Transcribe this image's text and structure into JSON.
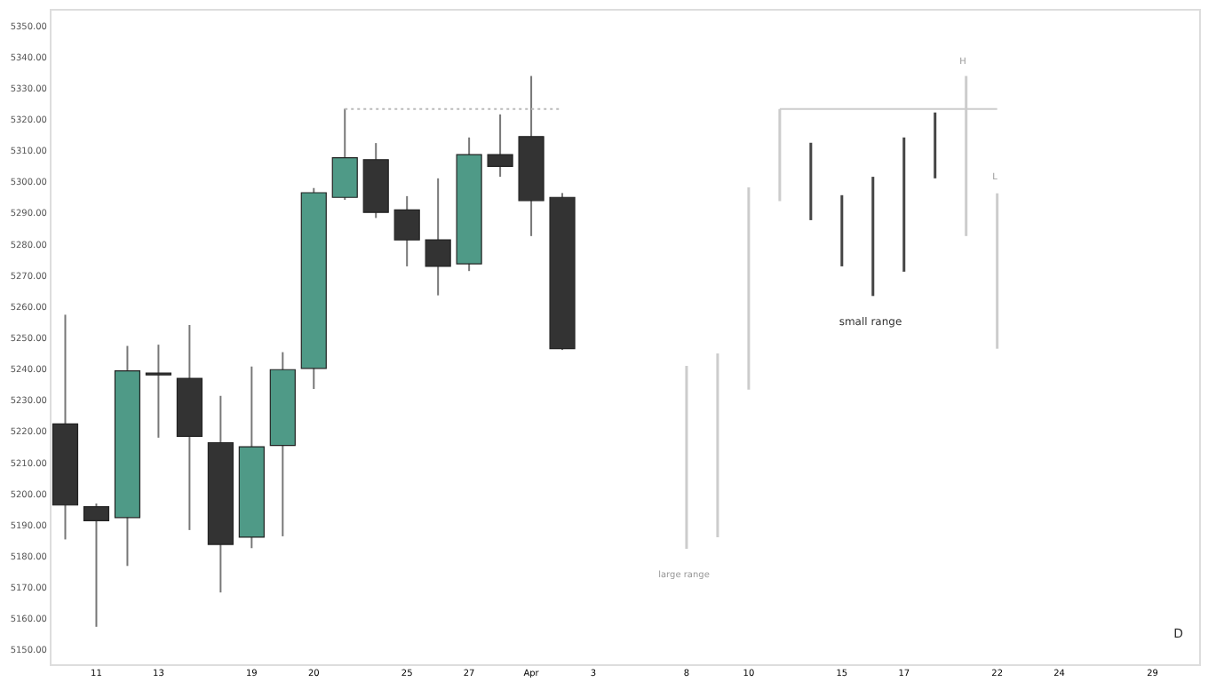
{
  "chart_data": {
    "type": "candlestick",
    "categories": [
      null,
      "11",
      null,
      "13",
      null,
      null,
      "19",
      null,
      "20",
      null,
      null,
      "25",
      null,
      "27",
      null,
      "Apr",
      null,
      "3",
      null,
      null,
      "8",
      null,
      "10",
      null,
      null,
      "15",
      null,
      "17",
      null,
      null,
      "22",
      null,
      "24",
      null,
      null,
      "29",
      null
    ],
    "ylim": [
      5145,
      5355
    ],
    "yticks": [
      {
        "value": 5150,
        "label": "5150.00"
      },
      {
        "value": 5160,
        "label": "5160.00"
      },
      {
        "value": 5170,
        "label": "5170.00"
      },
      {
        "value": 5180,
        "label": "5180.00"
      },
      {
        "value": 5190,
        "label": "5190.00"
      },
      {
        "value": 5200,
        "label": "5200.00"
      },
      {
        "value": 5210,
        "label": "5210.00"
      },
      {
        "value": 5220,
        "label": "5220.00"
      },
      {
        "value": 5230,
        "label": "5230.00"
      },
      {
        "value": 5240,
        "label": "5240.00"
      },
      {
        "value": 5250,
        "label": "5250.00"
      },
      {
        "value": 5260,
        "label": "5260.00"
      },
      {
        "value": 5270,
        "label": "5270.00"
      },
      {
        "value": 5280,
        "label": "5280.00"
      },
      {
        "value": 5290,
        "label": "5290.00"
      },
      {
        "value": 5300,
        "label": "5300.00"
      },
      {
        "value": 5310,
        "label": "5310.00"
      },
      {
        "value": 5320,
        "label": "5320.00"
      },
      {
        "value": 5330,
        "label": "5330.00"
      },
      {
        "value": 5340,
        "label": "5340.00"
      },
      {
        "value": 5350,
        "label": "5350.00"
      }
    ],
    "grid": false,
    "series": [
      {
        "ohlc": [
          [
            5222,
            5257,
            5185,
            5196
          ],
          [
            5195.5,
            5196.5,
            5157,
            5191
          ],
          [
            5192,
            5247,
            5176.5,
            5239
          ],
          [
            5238.3,
            5247.4,
            5217.6,
            5237.7
          ],
          [
            5236.6,
            5253.7,
            5188,
            5218
          ],
          [
            5216,
            5231,
            5168,
            5183.4
          ],
          [
            5185.7,
            5240.4,
            5182.2,
            5214.7
          ],
          [
            5215.1,
            5245,
            5186,
            5239.4
          ],
          [
            5239.8,
            5297.6,
            5233.2,
            5296.1
          ],
          [
            5294.6,
            5323,
            5293.8,
            5307.3
          ],
          [
            5306.7,
            5312,
            5288,
            5289.8
          ],
          [
            5290.6,
            5295,
            5272.5,
            5281
          ],
          [
            5281,
            5300.7,
            5263.2,
            5272.5
          ],
          [
            5273.3,
            5313.8,
            5271,
            5308.3
          ],
          [
            5308.3,
            5321.2,
            5301.2,
            5304.5
          ],
          [
            5314.1,
            5333.5,
            5282.2,
            5293.6
          ],
          [
            5294.6,
            5296,
            5245.7,
            5246.1
          ],
          null,
          null,
          null,
          null,
          null,
          null,
          null,
          null,
          null,
          null,
          null,
          null,
          null,
          null,
          null,
          null,
          null,
          null,
          null,
          null
        ],
        "colors": [
          "#333333",
          "#333333",
          "#4f9a87",
          "#333333",
          "#333333",
          "#333333",
          "#4f9a87",
          "#4f9a87",
          "#4f9a87",
          "#4f9a87",
          "#333333",
          "#333333",
          "#333333",
          "#4f9a87",
          "#333333",
          "#333333",
          "#333333",
          null,
          null,
          null,
          null,
          null,
          null,
          null,
          null,
          null,
          null,
          null,
          null,
          null,
          null,
          null,
          null,
          null,
          null,
          null,
          null
        ]
      },
      {
        "type": "bar",
        "base": [
          null,
          null,
          null,
          null,
          null,
          null,
          null,
          null,
          null,
          null,
          null,
          null,
          null,
          null,
          null,
          null,
          null,
          null,
          null,
          null,
          5182,
          5185.7,
          5233,
          5293.4,
          5287.3,
          5272.5,
          5263,
          5270.8,
          5300.7,
          5282.2,
          5246.1,
          null,
          null,
          null,
          null,
          null,
          null
        ],
        "values": [
          null,
          null,
          null,
          null,
          null,
          null,
          null,
          null,
          null,
          null,
          null,
          null,
          null,
          null,
          null,
          null,
          null,
          null,
          null,
          null,
          58.6,
          58.9,
          64.8,
          29.5,
          24.8,
          22.8,
          38.2,
          43,
          21.1,
          51.3,
          49.8,
          null,
          null,
          null,
          null,
          null,
          null
        ],
        "colors": [
          null,
          null,
          null,
          null,
          null,
          null,
          null,
          null,
          null,
          null,
          null,
          null,
          null,
          null,
          null,
          null,
          null,
          null,
          null,
          null,
          "#cccccc",
          "#cccccc",
          "#cccccc",
          "#cccccc",
          "#444444",
          "#444444",
          "#444444",
          "#444444",
          "#444444",
          "#cccccc",
          "#cccccc",
          null,
          null,
          null,
          null,
          null,
          null
        ]
      },
      {
        "type": "line",
        "color": "#bbbbbb",
        "line_style": "dotted",
        "values": [
          null,
          null,
          null,
          null,
          null,
          null,
          null,
          null,
          null,
          5322.9,
          5322.9,
          5322.9,
          5322.9,
          5322.9,
          5322.9,
          5322.9,
          5322.9,
          null,
          null,
          null,
          null,
          null,
          null,
          null,
          null,
          null,
          null,
          null,
          null,
          null,
          null,
          null,
          null,
          null,
          null,
          null,
          null
        ]
      },
      {
        "type": "line",
        "color": "#cccccc",
        "line_style": "solid",
        "values": [
          null,
          null,
          null,
          null,
          null,
          null,
          null,
          null,
          null,
          null,
          null,
          null,
          null,
          null,
          null,
          null,
          null,
          null,
          null,
          null,
          null,
          null,
          null,
          5322.9,
          5322.9,
          5322.9,
          5322.9,
          5322.9,
          5322.9,
          5322.9,
          5322.9,
          null,
          null,
          null,
          null,
          null,
          null
        ]
      }
    ],
    "annotations": [
      "large range",
      "small range",
      "H",
      "L",
      "D"
    ]
  }
}
